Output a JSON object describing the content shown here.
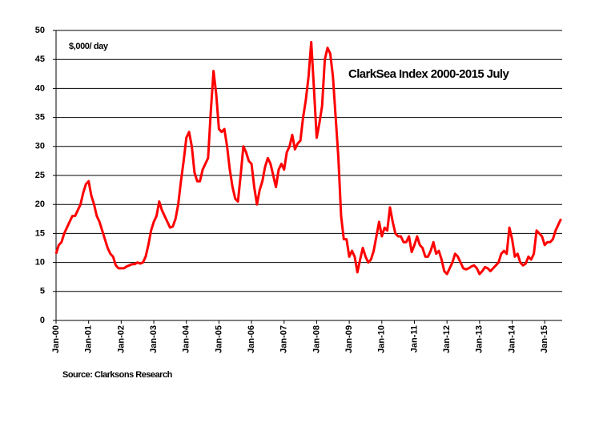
{
  "chart_data": {
    "type": "line",
    "title": "ClarkSea Index 2000-2015 July",
    "y_label": "$,000/ day",
    "source": "Source: Clarksons Research",
    "color": "#ff0000",
    "grid": true,
    "ylim": [
      0,
      50
    ],
    "yticks": [
      0,
      5,
      10,
      15,
      20,
      25,
      30,
      35,
      40,
      45,
      50
    ],
    "categories": [
      "Jan-00",
      null,
      null,
      null,
      null,
      null,
      null,
      null,
      null,
      null,
      null,
      null,
      "Jan-01",
      null,
      null,
      null,
      null,
      null,
      null,
      null,
      null,
      null,
      null,
      null,
      "Jan-02",
      null,
      null,
      null,
      null,
      null,
      null,
      null,
      null,
      null,
      null,
      null,
      "Jan-03",
      null,
      null,
      null,
      null,
      null,
      null,
      null,
      null,
      null,
      null,
      null,
      "Jan-04",
      null,
      null,
      null,
      null,
      null,
      null,
      null,
      null,
      null,
      null,
      null,
      "Jan-05",
      null,
      null,
      null,
      null,
      null,
      null,
      null,
      null,
      null,
      null,
      null,
      "Jan-06",
      null,
      null,
      null,
      null,
      null,
      null,
      null,
      null,
      null,
      null,
      null,
      "Jan-07",
      null,
      null,
      null,
      null,
      null,
      null,
      null,
      null,
      null,
      null,
      null,
      "Jan-08",
      null,
      null,
      null,
      null,
      null,
      null,
      null,
      null,
      null,
      null,
      null,
      "Jan-09",
      null,
      null,
      null,
      null,
      null,
      null,
      null,
      null,
      null,
      null,
      null,
      "Jan-10",
      null,
      null,
      null,
      null,
      null,
      null,
      null,
      null,
      null,
      null,
      null,
      "Jan-11",
      null,
      null,
      null,
      null,
      null,
      null,
      null,
      null,
      null,
      null,
      null,
      "Jan-12",
      null,
      null,
      null,
      null,
      null,
      null,
      null,
      null,
      null,
      null,
      null,
      "Jan-13",
      null,
      null,
      null,
      null,
      null,
      null,
      null,
      null,
      null,
      null,
      null,
      "Jan-14",
      null,
      null,
      null,
      null,
      null,
      null,
      null,
      null,
      null,
      null,
      null,
      "Jan-15",
      null,
      null,
      null,
      null,
      null,
      null
    ],
    "values": [
      11.5,
      13,
      13.5,
      15,
      16,
      17,
      18,
      18,
      19,
      20,
      22,
      23.5,
      24,
      21.5,
      20,
      18,
      17,
      15.5,
      14,
      12.5,
      11.5,
      11,
      9.5,
      9,
      9,
      9,
      9.3,
      9.5,
      9.7,
      9.7,
      10,
      9.8,
      10,
      11,
      13,
      15.5,
      17,
      18,
      20.5,
      19,
      18,
      17,
      16,
      16.2,
      17.5,
      20,
      24,
      27.5,
      31.5,
      32.5,
      30,
      25.5,
      24,
      24,
      26,
      27,
      28,
      36,
      43,
      39,
      33,
      32.5,
      33,
      30,
      26,
      23,
      21,
      20.5,
      25,
      30,
      29,
      27.5,
      27,
      23,
      20,
      22.5,
      24,
      26.5,
      28,
      27,
      25,
      23,
      26,
      27,
      26,
      29,
      30,
      32,
      29.5,
      30.5,
      31,
      35,
      38,
      42,
      48,
      40,
      31.5,
      34,
      37,
      45,
      47,
      46,
      42,
      35,
      28,
      18,
      14,
      14,
      11,
      12,
      11,
      8.3,
      10.5,
      12.5,
      11,
      10,
      10.5,
      12,
      14.5,
      17,
      14.5,
      16,
      15.5,
      19.5,
      17,
      15,
      14.5,
      14.5,
      13.5,
      13.5,
      14.5,
      11.8,
      13,
      14.5,
      13,
      12.5,
      11,
      11,
      12,
      13.5,
      11.5,
      12,
      10.5,
      8.5,
      8,
      9,
      10,
      11.5,
      11,
      10,
      9,
      8.8,
      9,
      9.3,
      9.5,
      9,
      8,
      8.5,
      9.2,
      9,
      8.5,
      9,
      9.5,
      10,
      11.5,
      12,
      11.5,
      16,
      14,
      11,
      11.5,
      10,
      9.5,
      9.8,
      11,
      10.5,
      11.5,
      15.5,
      15,
      14.5,
      13,
      13.5,
      13.5,
      14,
      15.5,
      16.5,
      17.5
    ]
  }
}
